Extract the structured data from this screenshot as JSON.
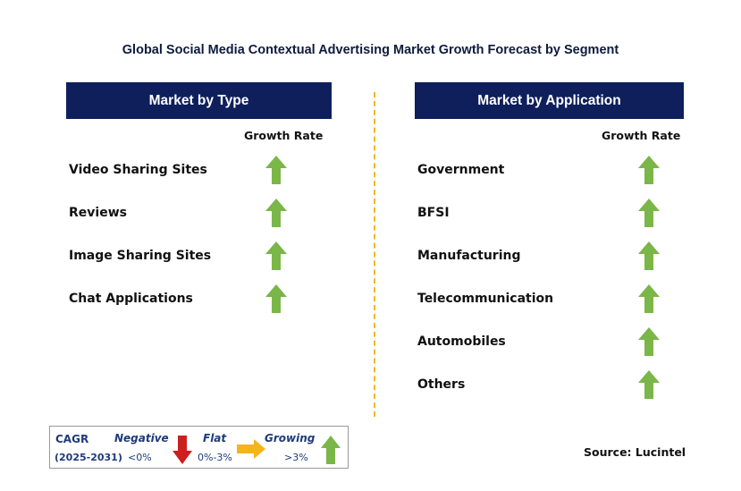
{
  "title": "Global Social Media Contextual Advertising Market Growth Forecast by Segment",
  "left_panel": {
    "header": "Market by Type",
    "growth_rate_label": "Growth Rate",
    "items": [
      {
        "label": "Video Sharing Sites",
        "trend": "growing"
      },
      {
        "label": "Reviews",
        "trend": "growing"
      },
      {
        "label": "Image Sharing Sites",
        "trend": "growing"
      },
      {
        "label": "Chat Applications",
        "trend": "growing"
      }
    ]
  },
  "right_panel": {
    "header": "Market by Application",
    "growth_rate_label": "Growth Rate",
    "items": [
      {
        "label": "Government",
        "trend": "growing"
      },
      {
        "label": "BFSI",
        "trend": "growing"
      },
      {
        "label": "Manufacturing",
        "trend": "growing"
      },
      {
        "label": "Telecommunication",
        "trend": "growing"
      },
      {
        "label": "Automobiles",
        "trend": "growing"
      },
      {
        "label": "Others",
        "trend": "growing"
      }
    ]
  },
  "legend": {
    "cagr_label": "CAGR",
    "period": "(2025-2031)",
    "negative": {
      "label": "Negative",
      "range": "<0%",
      "icon": "red-down-arrow-icon"
    },
    "flat": {
      "label": "Flat",
      "range": "0%-3%",
      "icon": "orange-right-arrow-icon"
    },
    "growing": {
      "label": "Growing",
      "range": ">3%",
      "icon": "green-up-arrow-icon"
    }
  },
  "source": "Source: Lucintel",
  "colors": {
    "header_bg": "#0e1f5b",
    "growing": "#7ab648",
    "negative": "#cc1f1f",
    "flat": "#f5b41b",
    "divider": "#f3b62b",
    "legend_label": "#1f3a7a"
  }
}
